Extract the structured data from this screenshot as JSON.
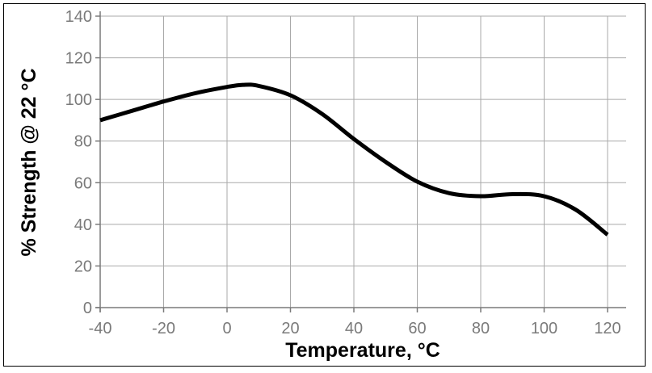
{
  "chart_data": {
    "type": "line",
    "title": "",
    "xlabel": "Temperature, °C",
    "ylabel": "% Strength @ 22 °C",
    "xlim": [
      -40,
      120
    ],
    "ylim": [
      0,
      140
    ],
    "xticks": [
      -40,
      -20,
      0,
      20,
      40,
      60,
      80,
      100,
      120
    ],
    "yticks": [
      0,
      20,
      40,
      60,
      80,
      100,
      120,
      140
    ],
    "grid": true,
    "series": [
      {
        "name": "% Strength",
        "color": "#000000",
        "x": [
          -40,
          -30,
          -20,
          -10,
          0,
          5,
          10,
          20,
          30,
          40,
          50,
          60,
          70,
          80,
          90,
          100,
          110,
          120
        ],
        "y": [
          90,
          94.5,
          99,
          103,
          106,
          107,
          106.5,
          102,
          93,
          81,
          70,
          60.5,
          55,
          53.5,
          54.5,
          53.5,
          47,
          35
        ]
      }
    ]
  }
}
